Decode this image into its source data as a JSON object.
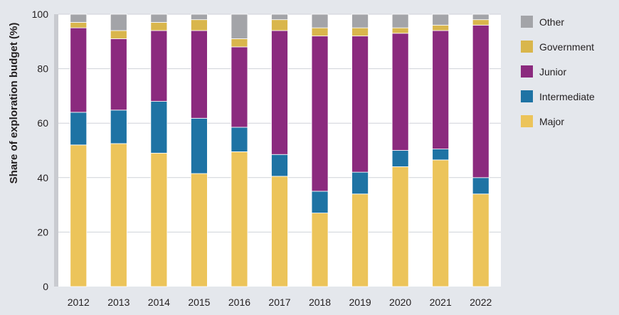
{
  "chart_data": {
    "type": "bar",
    "stacked": true,
    "ylabel": "Share of exploration budget (%)",
    "ylim": [
      0,
      100
    ],
    "yticks": [
      0,
      20,
      40,
      60,
      80,
      100
    ],
    "grid": true,
    "legend_position": "right",
    "categories": [
      "2012",
      "2013",
      "2014",
      "2015",
      "2016",
      "2017",
      "2018",
      "2019",
      "2020",
      "2021",
      "2022"
    ],
    "series": [
      {
        "name": "Major",
        "color": "#ecc45a",
        "values": [
          52,
          52.5,
          49,
          41.5,
          49.5,
          40.5,
          27,
          34,
          44,
          46.5,
          34
        ]
      },
      {
        "name": "Intermediate",
        "color": "#1e73a4",
        "values": [
          12,
          12.3,
          19,
          20.3,
          9,
          8,
          8,
          8,
          6,
          4,
          6
        ]
      },
      {
        "name": "Junior",
        "color": "#8b2a7e",
        "values": [
          31,
          26.2,
          26,
          32.2,
          29.5,
          45.5,
          57,
          50,
          43,
          43.5,
          56
        ]
      },
      {
        "name": "Government",
        "color": "#d9b64c",
        "values": [
          2,
          3,
          3,
          4,
          3,
          4,
          3,
          3,
          2,
          2,
          2
        ]
      },
      {
        "name": "Other",
        "color": "#a3a4a8",
        "values": [
          3,
          6,
          3,
          2,
          9,
          2,
          5,
          5,
          5,
          4,
          2
        ]
      }
    ],
    "legend_order": [
      "Other",
      "Government",
      "Junior",
      "Intermediate",
      "Major"
    ]
  }
}
